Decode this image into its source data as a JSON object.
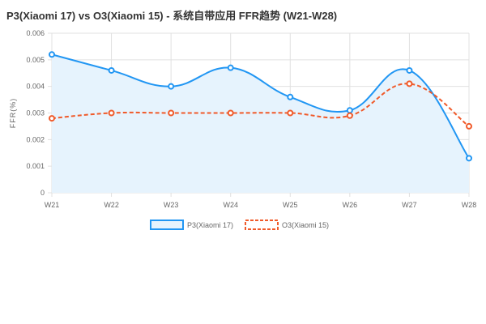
{
  "chart_data": {
    "type": "line",
    "title": "P3(Xiaomi 17) vs O3(Xiaomi 15) - 系统自带应用 FFR趋势 (W21-W28)",
    "xlabel": "",
    "ylabel": "FFR(%)",
    "categories": [
      "W21",
      "W22",
      "W23",
      "W24",
      "W25",
      "W26",
      "W27",
      "W28"
    ],
    "ylim": [
      0,
      0.006
    ],
    "yticks": [
      "0",
      "0.001",
      "0.002",
      "0.003",
      "0.004",
      "0.005",
      "0.006"
    ],
    "grid": true,
    "legend": "bottom",
    "series": [
      {
        "name": "P3(Xiaomi 17)",
        "values": [
          0.0052,
          0.0046,
          0.004,
          0.0047,
          0.0036,
          0.0031,
          0.0046,
          0.0013
        ],
        "color": "#2196f3",
        "fill": "#e6f3fd",
        "dashed": false
      },
      {
        "name": "O3(Xiaomi 15)",
        "values": [
          0.0028,
          0.003,
          0.003,
          0.003,
          0.003,
          0.0029,
          0.0041,
          0.0025
        ],
        "color": "#f05a2a",
        "dashed": true
      }
    ]
  }
}
